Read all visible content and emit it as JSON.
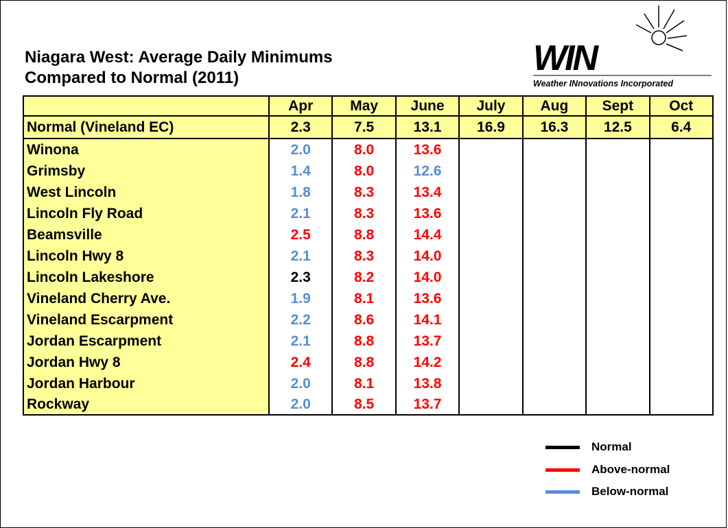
{
  "header": {
    "title_lines": [
      "Niagara West: Average Daily Minimums",
      "Compared to Normal (2011)"
    ],
    "logo": "WIN",
    "logo_tagline": "Weather INnovations Incorporated"
  },
  "table": {
    "columns": [
      "Apr",
      "May",
      "June",
      "July",
      "Aug",
      "Sept",
      "Oct"
    ],
    "normal": {
      "label": "Normal (Vineland EC)",
      "values": [
        "2.3",
        "7.5",
        "13.1",
        "16.9",
        "16.3",
        "12.5",
        "6.4"
      ]
    },
    "rows": [
      {
        "station": "Winona",
        "values": [
          "2.0",
          "8.0",
          "13.6"
        ]
      },
      {
        "station": "Grimsby",
        "values": [
          "1.4",
          "8.0",
          "12.6"
        ]
      },
      {
        "station": "West Lincoln",
        "values": [
          "1.8",
          "8.3",
          "13.4"
        ]
      },
      {
        "station": "Lincoln Fly Road",
        "values": [
          "2.1",
          "8.3",
          "13.6"
        ]
      },
      {
        "station": "Beamsville",
        "values": [
          "2.5",
          "8.8",
          "14.4"
        ]
      },
      {
        "station": "Lincoln Hwy 8",
        "values": [
          "2.1",
          "8.3",
          "14.0"
        ]
      },
      {
        "station": "Lincoln Lakeshore",
        "values": [
          "2.3",
          "8.2",
          "14.0"
        ]
      },
      {
        "station": "Vineland Cherry Ave.",
        "values": [
          "1.9",
          "8.1",
          "13.6"
        ]
      },
      {
        "station": "Vineland Escarpment",
        "values": [
          "2.2",
          "8.6",
          "14.1"
        ]
      },
      {
        "station": "Jordan Escarpment",
        "values": [
          "2.1",
          "8.8",
          "13.7"
        ]
      },
      {
        "station": "Jordan Hwy 8",
        "values": [
          "2.4",
          "8.8",
          "14.2"
        ]
      },
      {
        "station": "Jordan Harbour",
        "values": [
          "2.0",
          "8.1",
          "13.8"
        ]
      },
      {
        "station": "Rockway",
        "values": [
          "2.0",
          "8.5",
          "13.7"
        ]
      }
    ]
  },
  "legend": [
    {
      "name": "Normal",
      "color": "#000000"
    },
    {
      "name": "Above-normal",
      "color": "#ff0000"
    },
    {
      "name": "Below-normal",
      "color": "#558ed5"
    }
  ]
}
